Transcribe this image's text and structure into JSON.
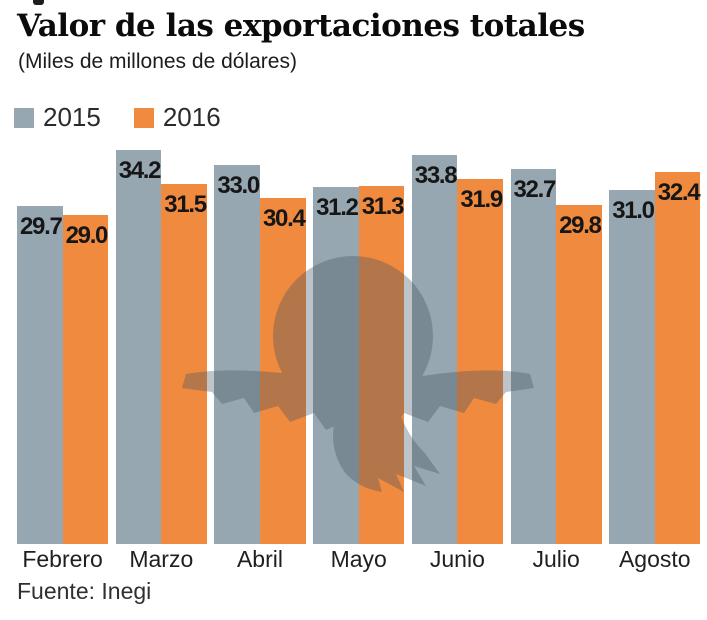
{
  "chart_data": {
    "type": "bar",
    "title": "Valor de las exportaciones totales",
    "subtitle": "(Miles de millones de dólares)",
    "categories": [
      "Febrero",
      "Marzo",
      "Abril",
      "Mayo",
      "Junio",
      "Julio",
      "Agosto"
    ],
    "series": [
      {
        "name": "2015",
        "color": "#96a7b1",
        "values": [
          29.7,
          34.2,
          33.0,
          31.2,
          33.8,
          32.7,
          31.0
        ]
      },
      {
        "name": "2016",
        "color": "#ef8a3f",
        "values": [
          29.0,
          31.5,
          30.4,
          31.3,
          31.9,
          29.8,
          32.4
        ]
      }
    ],
    "value_labels": true,
    "grid": false,
    "legend_position": "top-left",
    "xlabel": "",
    "ylabel": "",
    "ylim": [
      0,
      36
    ]
  },
  "source": "Fuente: Inegi",
  "watermark": "el-economista-eagle-globe",
  "colors": {
    "bar_2015": "#96a7b1",
    "bar_2016": "#ef8a3f",
    "value_label": "#161616",
    "watermark": "#41525f"
  }
}
